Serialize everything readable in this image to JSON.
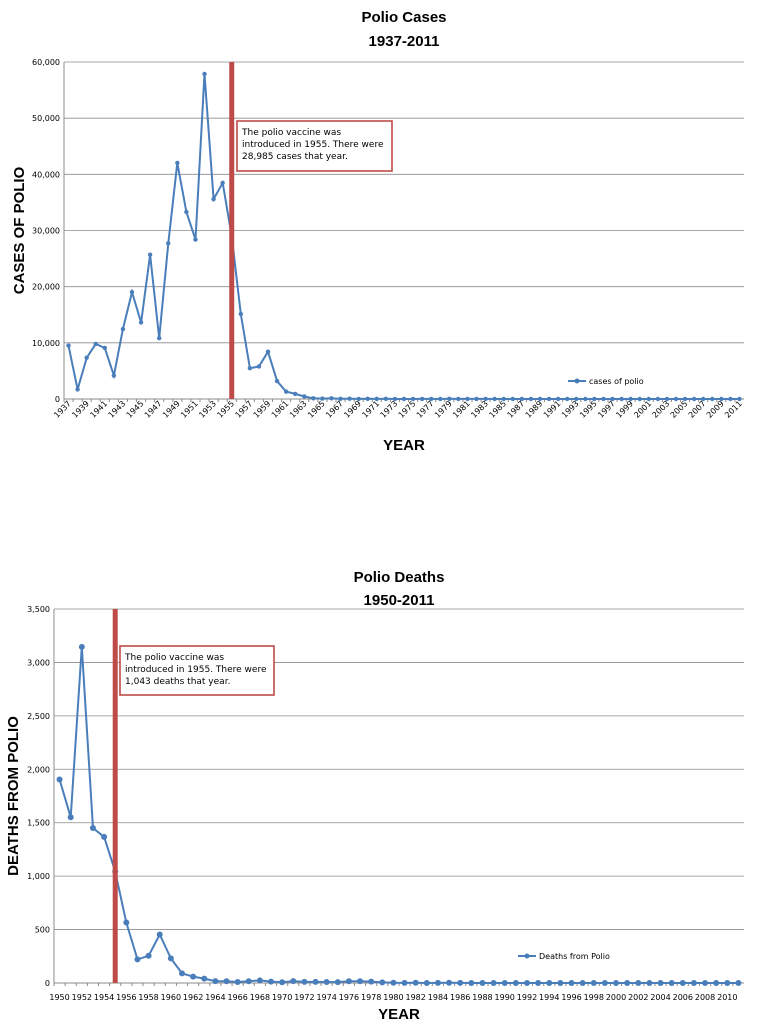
{
  "chart_data": [
    {
      "type": "line",
      "title": "Polio Cases",
      "subtitle": "1937-2011",
      "xlabel": "YEAR",
      "ylabel": "CASES OF POLIO",
      "ylim": [
        0,
        60000
      ],
      "y_ticks": [
        "0",
        "10,000",
        "20,000",
        "30,000",
        "40,000",
        "50,000",
        "60,000"
      ],
      "grid": true,
      "legend_position": "lower-right",
      "colors": {
        "series": "#4a7ebb",
        "marker_line": "#be4b48",
        "annotation_border": "#be4b48"
      },
      "annotation": {
        "lines": [
          "The polio vaccine was",
          "introduced in 1955.  There were",
          "28,985  cases that year."
        ],
        "x": 1955
      },
      "series": [
        {
          "name": "cases of polio",
          "x_start": 1937,
          "x_end": 2011,
          "values": [
            9514,
            1705,
            7343,
            9804,
            9086,
            4167,
            12450,
            19029,
            13624,
            25698,
            10827,
            27726,
            42033,
            33300,
            28386,
            57879,
            35592,
            38476,
            28985,
            15140,
            5485,
            5787,
            8425,
            3190,
            1312,
            910,
            449,
            122,
            72,
            113,
            41,
            53,
            20,
            33,
            21,
            31,
            8,
            7,
            8,
            14,
            20,
            8,
            34,
            9,
            10,
            12,
            15,
            8,
            8,
            7,
            7,
            5,
            8,
            8,
            6,
            4,
            6,
            0,
            6,
            4,
            3,
            0,
            0,
            0,
            0,
            0,
            0,
            0,
            0,
            0,
            0,
            0,
            0,
            0,
            0
          ]
        }
      ]
    },
    {
      "type": "line",
      "title": "Polio Deaths",
      "subtitle": "1950-2011",
      "xlabel": "YEAR",
      "ylabel": "DEATHS FROM POLIO",
      "ylim": [
        0,
        3500
      ],
      "y_ticks": [
        "0",
        "500",
        "1,000",
        "1,500",
        "2,000",
        "2,500",
        "3,000",
        "3,500"
      ],
      "grid": true,
      "legend_position": "lower-right",
      "colors": {
        "series": "#4a7ebb",
        "marker_line": "#be4b48",
        "annotation_border": "#be4b48"
      },
      "annotation": {
        "lines": [
          "The polio vaccine was",
          "introduced in 1955.  There were",
          "1,043  deaths that year."
        ],
        "x": 1955
      },
      "series": [
        {
          "name": "Deaths from Polio",
          "x_start": 1950,
          "x_end": 2011,
          "values": [
            1904,
            1551,
            3145,
            1450,
            1368,
            1043,
            566,
            221,
            255,
            454,
            230,
            90,
            60,
            41,
            17,
            16,
            9,
            16,
            24,
            13,
            7,
            18,
            10,
            10,
            9,
            8,
            16,
            16,
            13,
            6,
            2,
            1,
            2,
            0,
            1,
            2,
            1,
            0,
            0,
            0,
            0,
            0,
            0,
            0,
            0,
            0,
            0,
            0,
            0,
            0,
            0,
            0,
            0,
            0,
            0,
            0,
            0,
            0,
            0,
            0,
            0,
            0
          ]
        }
      ]
    }
  ]
}
